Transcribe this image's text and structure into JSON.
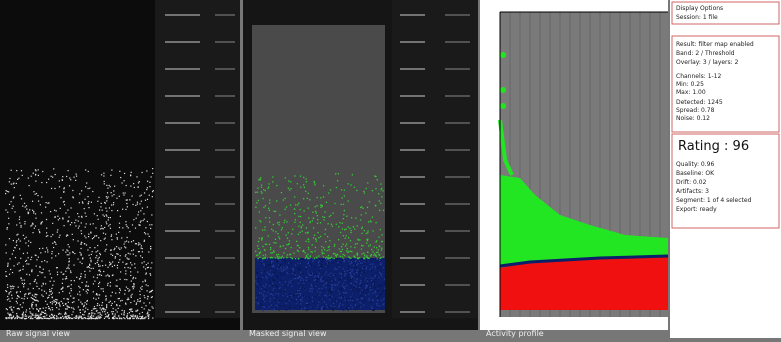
{
  "captions": [
    "Raw signal view",
    "Masked signal view",
    "Activity profile"
  ],
  "info": {
    "header": [
      "Display Options",
      "Session: 1 file"
    ],
    "block1": [
      "Result: filter map enabled",
      "Band: 2 / Threshold",
      "Overlay: 3 / layers: 2"
    ],
    "block2": [
      "Channels: 1-12",
      "Min: 0.25",
      "Max: 1.00"
    ],
    "block3": [
      "Detected: 1245",
      "Spread: 0.78",
      "Noise: 0.12"
    ],
    "rating": "Rating : 96",
    "block4": [
      "Quality: 0.96",
      "Baseline: OK",
      "Drift: 0.02",
      "Artifacts: 3",
      "Segment: 1 of 4 selected",
      "Export: ready"
    ]
  }
}
